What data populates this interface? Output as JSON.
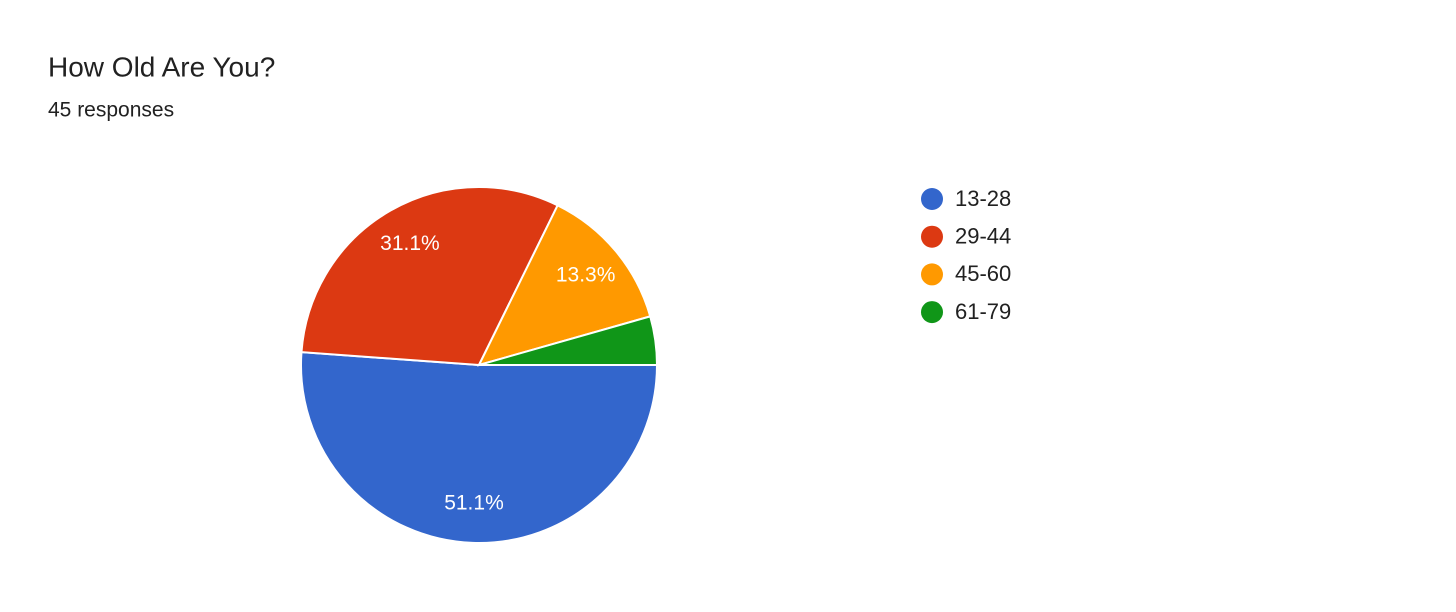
{
  "chart_data": {
    "type": "pie",
    "title": "How Old Are You?",
    "subtitle": "45 responses",
    "categories": [
      "13-28",
      "29-44",
      "45-60",
      "61-79"
    ],
    "values": [
      51.1,
      31.1,
      13.3,
      4.4
    ],
    "value_labels": [
      "51.1%",
      "31.1%",
      "13.3%",
      null
    ],
    "colors": [
      "#3366cc",
      "#dc3912",
      "#ff9900",
      "#109618"
    ],
    "legend": "right"
  }
}
